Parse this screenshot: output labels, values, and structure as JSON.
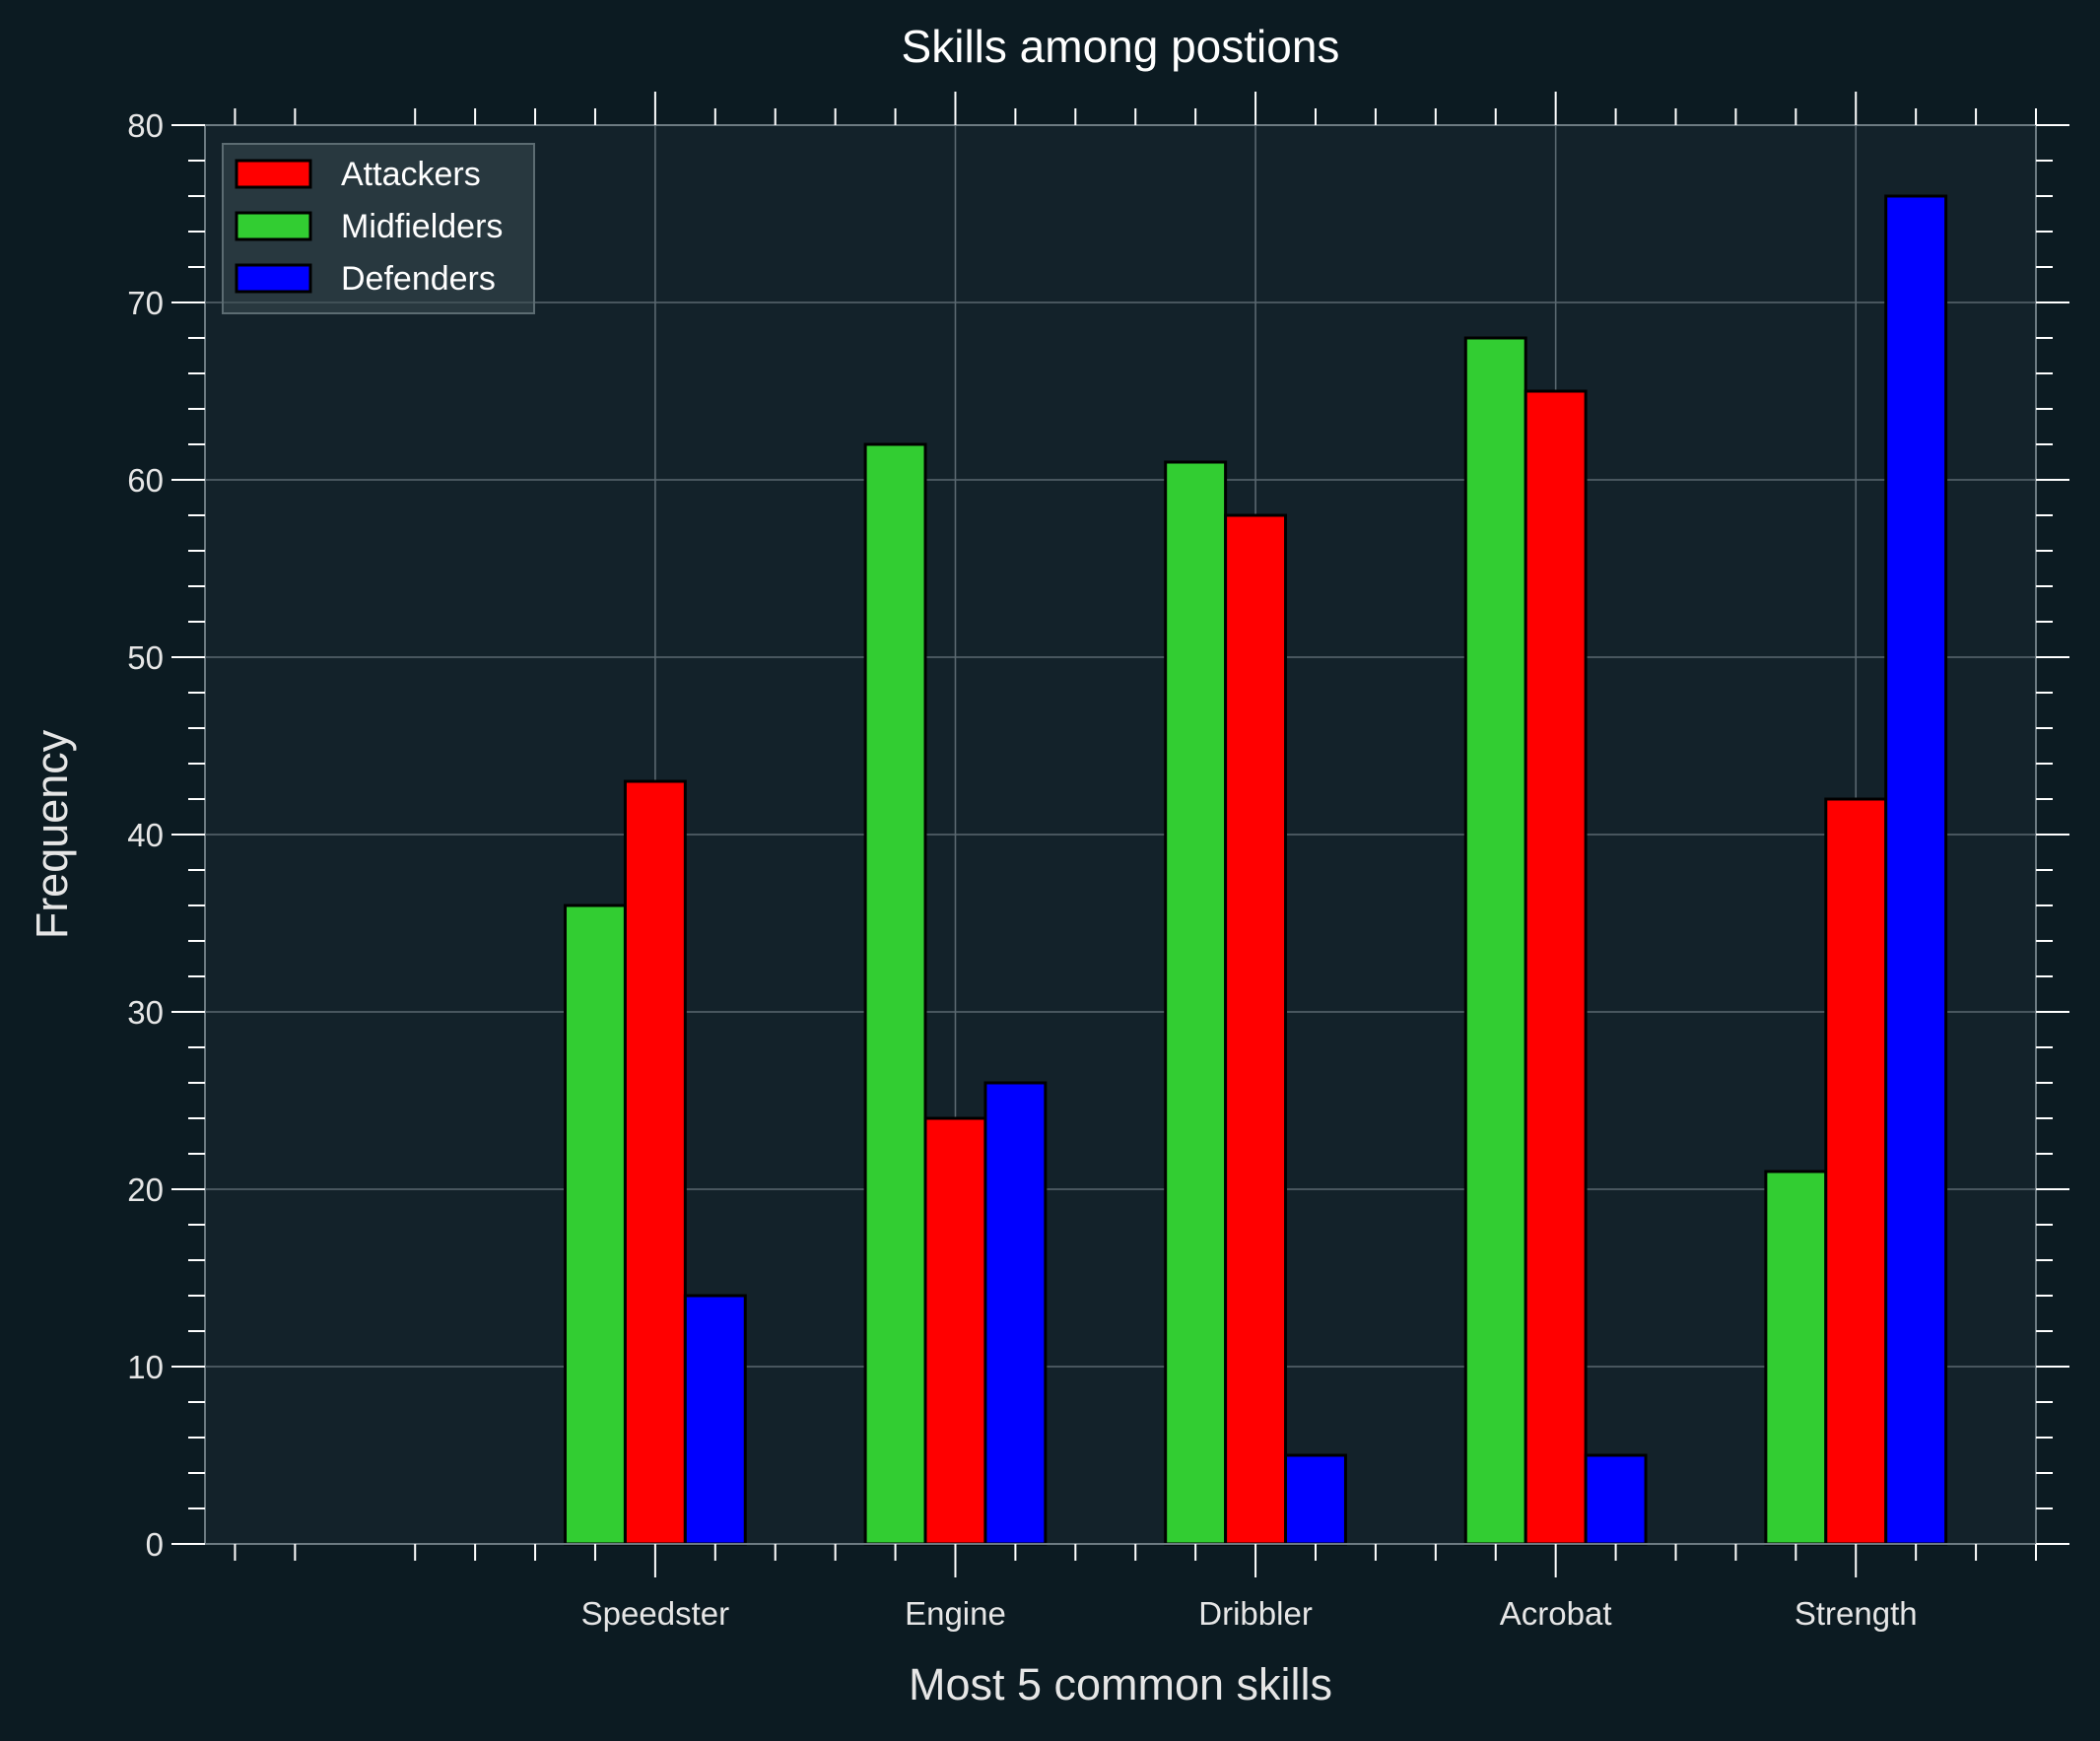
{
  "chart_data": {
    "type": "bar",
    "title": "Skills among postions",
    "xlabel": "Most 5 common skills",
    "ylabel": "Frequency",
    "categories": [
      "Speedster",
      "Engine",
      "Dribbler",
      "Acrobat",
      "Strength"
    ],
    "series": [
      {
        "name": "Midfielders",
        "color": "#32cd32",
        "values": [
          36,
          62,
          61,
          68,
          21
        ]
      },
      {
        "name": "Attackers",
        "color": "#ff0000",
        "values": [
          43,
          24,
          58,
          65,
          42
        ]
      },
      {
        "name": "Defenders",
        "color": "#0000ff",
        "values": [
          14,
          26,
          5,
          5,
          76
        ]
      }
    ],
    "legend_order": [
      "Attackers",
      "Midfielders",
      "Defenders"
    ],
    "legend_position": "top-left",
    "ylim": [
      0,
      80
    ],
    "yticks": [
      0,
      10,
      20,
      30,
      40,
      50,
      60,
      70,
      80
    ],
    "grid": true,
    "background": "#0c1b22",
    "plot_background": "#13222a"
  }
}
